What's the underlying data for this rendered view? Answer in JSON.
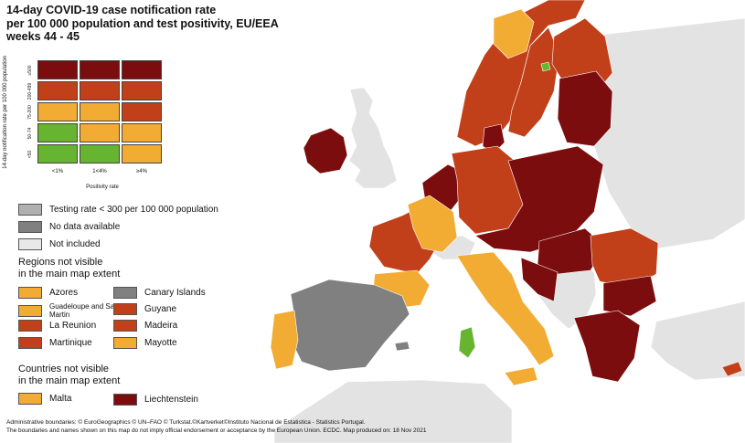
{
  "title": {
    "line1": "14-day COVID-19 case notification rate",
    "line2": "per 100 000 population and test positivity, EU/EEA",
    "line3": "weeks 44 - 45"
  },
  "matrix": {
    "y_axis_title": "14-day notification rate per 100 000 population",
    "bands": [
      "≥500",
      "200-499",
      "75-200",
      "50-74",
      "<50"
    ],
    "columns": [
      "<1%",
      "1<4%",
      "≥4%"
    ],
    "x_axis_title": "Positivity rate",
    "colors": [
      [
        "#7b0d0e",
        "#7b0d0e",
        "#7b0d0e"
      ],
      [
        "#c24019",
        "#c24019",
        "#c24019"
      ],
      [
        "#f2ac33",
        "#f2ac33",
        "#c24019"
      ],
      [
        "#66b430",
        "#f2ac33",
        "#f2ac33"
      ],
      [
        "#66b430",
        "#66b430",
        "#f2ac33"
      ]
    ]
  },
  "status_legend": [
    {
      "label": "Testing rate < 300 per 100 000 population",
      "color": "#b0b0b0"
    },
    {
      "label": "No data available",
      "color": "#808080"
    },
    {
      "label": "Not included",
      "color": "#e8e8e8"
    }
  ],
  "regions": {
    "heading_line1": "Regions not visible",
    "heading_line2": "in the main map extent",
    "left": [
      {
        "label": "Azores",
        "color": "#f2ac33"
      },
      {
        "label": "Guadeloupe and Saint Martin",
        "color": "#f2ac33"
      },
      {
        "label": "La Reunion",
        "color": "#c24019"
      },
      {
        "label": "Martinique",
        "color": "#c24019"
      }
    ],
    "right": [
      {
        "label": "Canary Islands",
        "color": "#808080"
      },
      {
        "label": "Guyane",
        "color": "#c24019"
      },
      {
        "label": "Madeira",
        "color": "#c24019"
      },
      {
        "label": "Mayotte",
        "color": "#f2ac33"
      }
    ]
  },
  "countries": {
    "heading_line1": "Countries not visible",
    "heading_line2": "in the main map extent",
    "items": [
      {
        "label": "Malta",
        "color": "#f2ac33"
      },
      {
        "label": "Liechtenstein",
        "color": "#7b0d0e"
      }
    ]
  },
  "footer": {
    "line1": "Administrative boundaries: © EuroGeographics © UN–FAO © Turkstat.©Kartverket©Instituto Nacional de Estatistica - Statistics Portugal.",
    "line2": "The boundaries and names shown on this map do not imply official endorsement or acceptance by the European Union. ECDC. Map produced on: 18 Nov 2021"
  },
  "map_colors": {
    "sea": "#ffffff",
    "non_eu": "#e3e3e3",
    "dark_red": "#7b0d0e",
    "red": "#c24019",
    "orange": "#f2ac33",
    "green": "#66b430",
    "grey": "#808080"
  }
}
